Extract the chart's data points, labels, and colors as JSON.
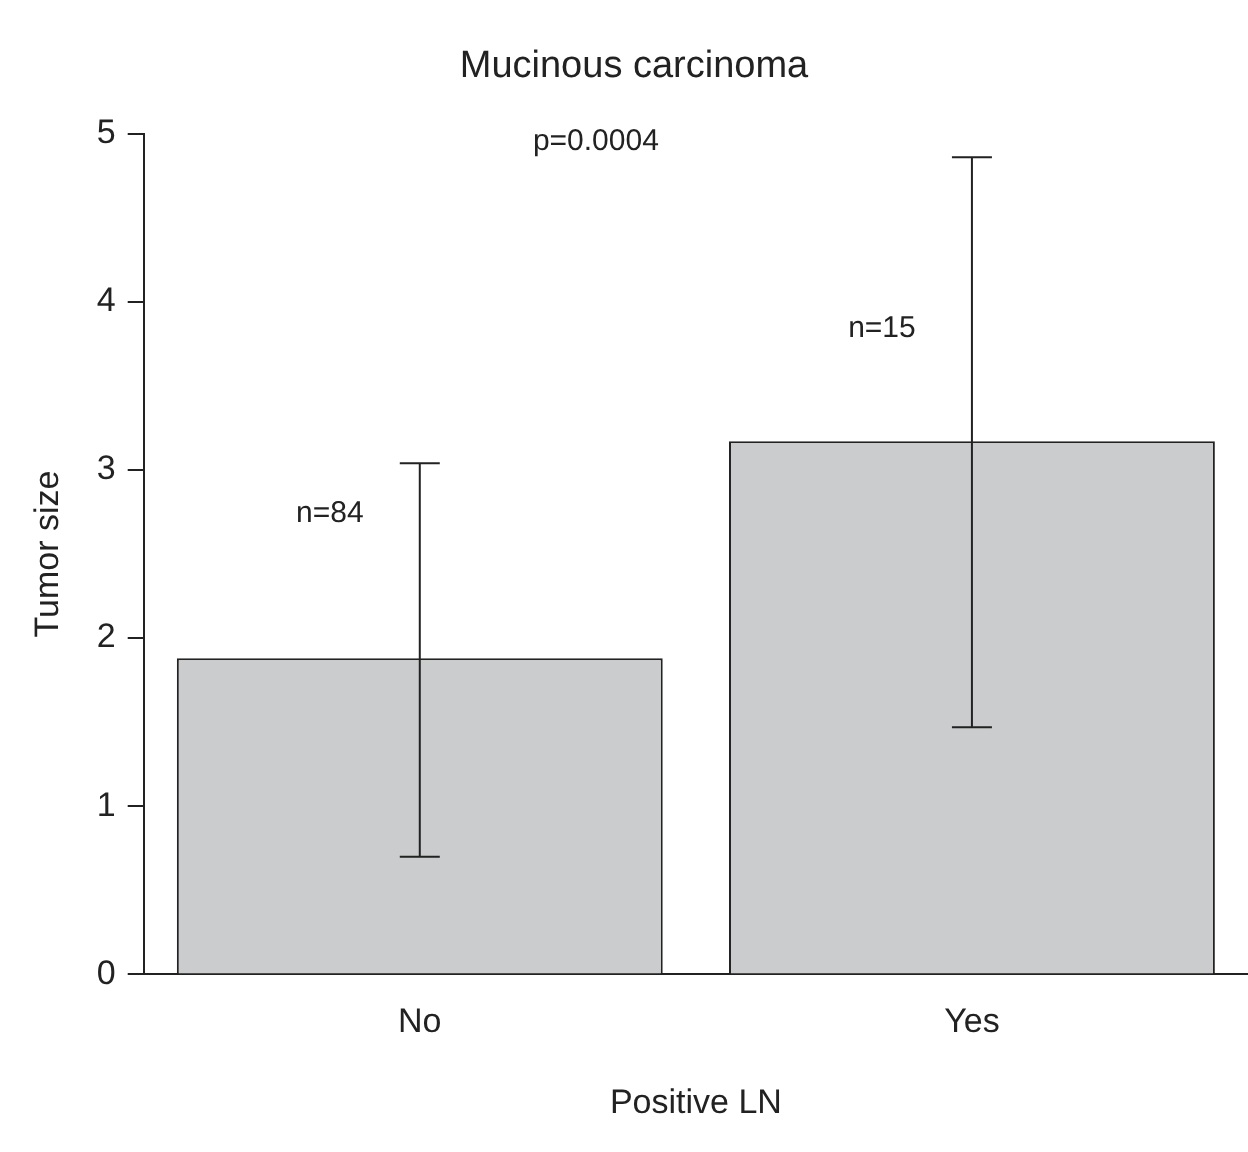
{
  "chart_data": {
    "type": "bar",
    "title": "Mucinous carcinoma",
    "xlabel": "Positive LN",
    "ylabel": "Tumor size",
    "categories": [
      "No",
      "Yes"
    ],
    "values": [
      1.88,
      3.17
    ],
    "errors": [
      [
        0.7,
        3.04
      ],
      [
        1.47,
        4.86
      ]
    ],
    "color": "#cbcccd",
    "ylim": [
      0,
      5
    ],
    "yticks": [
      0,
      1,
      2,
      3,
      4,
      5
    ],
    "grid": false,
    "legend": false,
    "annotations": [
      "p=0.0004",
      {
        "text": "n=84",
        "x": "No",
        "y": 2.74
      },
      {
        "text": "n=15",
        "x": "Yes",
        "y": 3.84
      }
    ]
  }
}
